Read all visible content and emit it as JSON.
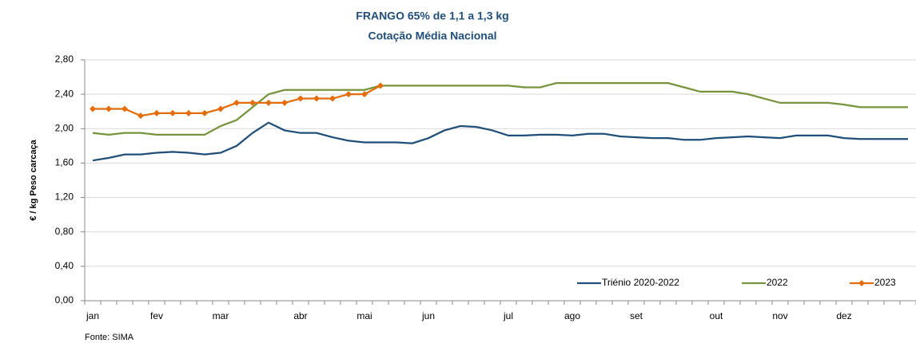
{
  "chart_data": {
    "type": "line",
    "title": "FRANGO 65% de 1,1 a 1,3 kg",
    "subtitle": "Cotação Média Nacional",
    "y_label": "€ / kg Peso carcaça",
    "source": "Fonte: SIMA",
    "categories": [
      "jan",
      null,
      null,
      null,
      "fev",
      null,
      null,
      null,
      "mar",
      null,
      null,
      null,
      null,
      "abr",
      null,
      null,
      null,
      "mai",
      null,
      null,
      null,
      "jun",
      null,
      null,
      null,
      null,
      "jul",
      null,
      null,
      null,
      "ago",
      null,
      null,
      null,
      "set",
      null,
      null,
      null,
      null,
      "out",
      null,
      null,
      null,
      "nov",
      null,
      null,
      null,
      "dez",
      null,
      null,
      null,
      null
    ],
    "series": [
      {
        "name": "Triénio 2020-2022",
        "color": "#1f4e79",
        "marker": false,
        "values": [
          1.63,
          1.66,
          1.7,
          1.7,
          1.72,
          1.73,
          1.72,
          1.7,
          1.72,
          1.8,
          1.95,
          2.07,
          1.98,
          1.95,
          1.95,
          1.9,
          1.86,
          1.84,
          1.84,
          1.84,
          1.83,
          1.89,
          1.98,
          2.03,
          2.02,
          1.98,
          1.92,
          1.92,
          1.93,
          1.93,
          1.92,
          1.94,
          1.94,
          1.91,
          1.9,
          1.89,
          1.89,
          1.87,
          1.87,
          1.89,
          1.9,
          1.91,
          1.9,
          1.89,
          1.92,
          1.92,
          1.92,
          1.89,
          1.88,
          1.88,
          1.88,
          1.88
        ]
      },
      {
        "name": "2022",
        "color": "#77933c",
        "marker": false,
        "values": [
          1.95,
          1.93,
          1.95,
          1.95,
          1.93,
          1.93,
          1.93,
          1.93,
          2.03,
          2.1,
          2.25,
          2.4,
          2.45,
          2.45,
          2.45,
          2.45,
          2.45,
          2.45,
          2.5,
          2.5,
          2.5,
          2.5,
          2.5,
          2.5,
          2.5,
          2.5,
          2.5,
          2.48,
          2.48,
          2.53,
          2.53,
          2.53,
          2.53,
          2.53,
          2.53,
          2.53,
          2.53,
          2.48,
          2.43,
          2.43,
          2.43,
          2.4,
          2.35,
          2.3,
          2.3,
          2.3,
          2.3,
          2.28,
          2.25,
          2.25,
          2.25,
          2.25
        ]
      },
      {
        "name": "2023",
        "color": "#e46c0a",
        "marker": true,
        "values": [
          2.23,
          2.23,
          2.23,
          2.15,
          2.18,
          2.18,
          2.18,
          2.18,
          2.23,
          2.3,
          2.3,
          2.3,
          2.3,
          2.35,
          2.35,
          2.35,
          2.4,
          2.4,
          2.5,
          null,
          null,
          null,
          null,
          null,
          null,
          null,
          null,
          null,
          null,
          null,
          null,
          null,
          null,
          null,
          null,
          null,
          null,
          null,
          null,
          null,
          null,
          null,
          null,
          null,
          null,
          null,
          null,
          null,
          null,
          null,
          null,
          null
        ]
      }
    ],
    "ylim": [
      0,
      2.8
    ],
    "yticks": [
      {
        "value": 0,
        "label": "0,00"
      },
      {
        "value": 0.4,
        "label": "0,40"
      },
      {
        "value": 0.8,
        "label": "0,80"
      },
      {
        "value": 1.2,
        "label": "1,20"
      },
      {
        "value": 1.6,
        "label": "1,60"
      },
      {
        "value": 2.0,
        "label": "2,00"
      },
      {
        "value": 2.4,
        "label": "2,40"
      },
      {
        "value": 2.8,
        "label": "2,80"
      }
    ],
    "grid": true,
    "legend": "bottom-right"
  }
}
